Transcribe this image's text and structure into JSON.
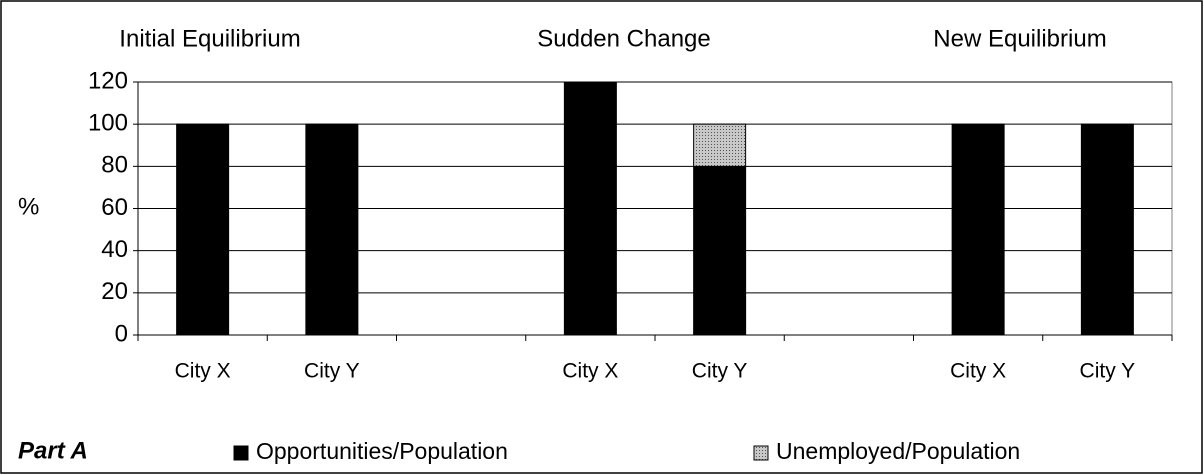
{
  "chart_data": {
    "type": "stacked_bar",
    "annotations": [
      "Initial Equilibrium",
      "Sudden Change",
      "New Equilibrium"
    ],
    "ylabel": "%",
    "part_label": "Part A",
    "categories": [
      "City X",
      "City Y",
      null,
      "City X",
      "City Y",
      null,
      "City X",
      "City Y"
    ],
    "series": [
      {
        "name": "Opportunities/Population",
        "color": "#000000",
        "values": [
          100,
          100,
          null,
          120,
          80,
          null,
          100,
          100
        ]
      },
      {
        "name": "Unemployed/Population",
        "color": "#a0a0a0",
        "values": [
          null,
          null,
          null,
          null,
          20,
          null,
          null,
          null
        ]
      }
    ],
    "ylim": [
      0,
      120
    ],
    "yticks": [
      0,
      20,
      40,
      60,
      80,
      100,
      120
    ],
    "grid": true
  }
}
